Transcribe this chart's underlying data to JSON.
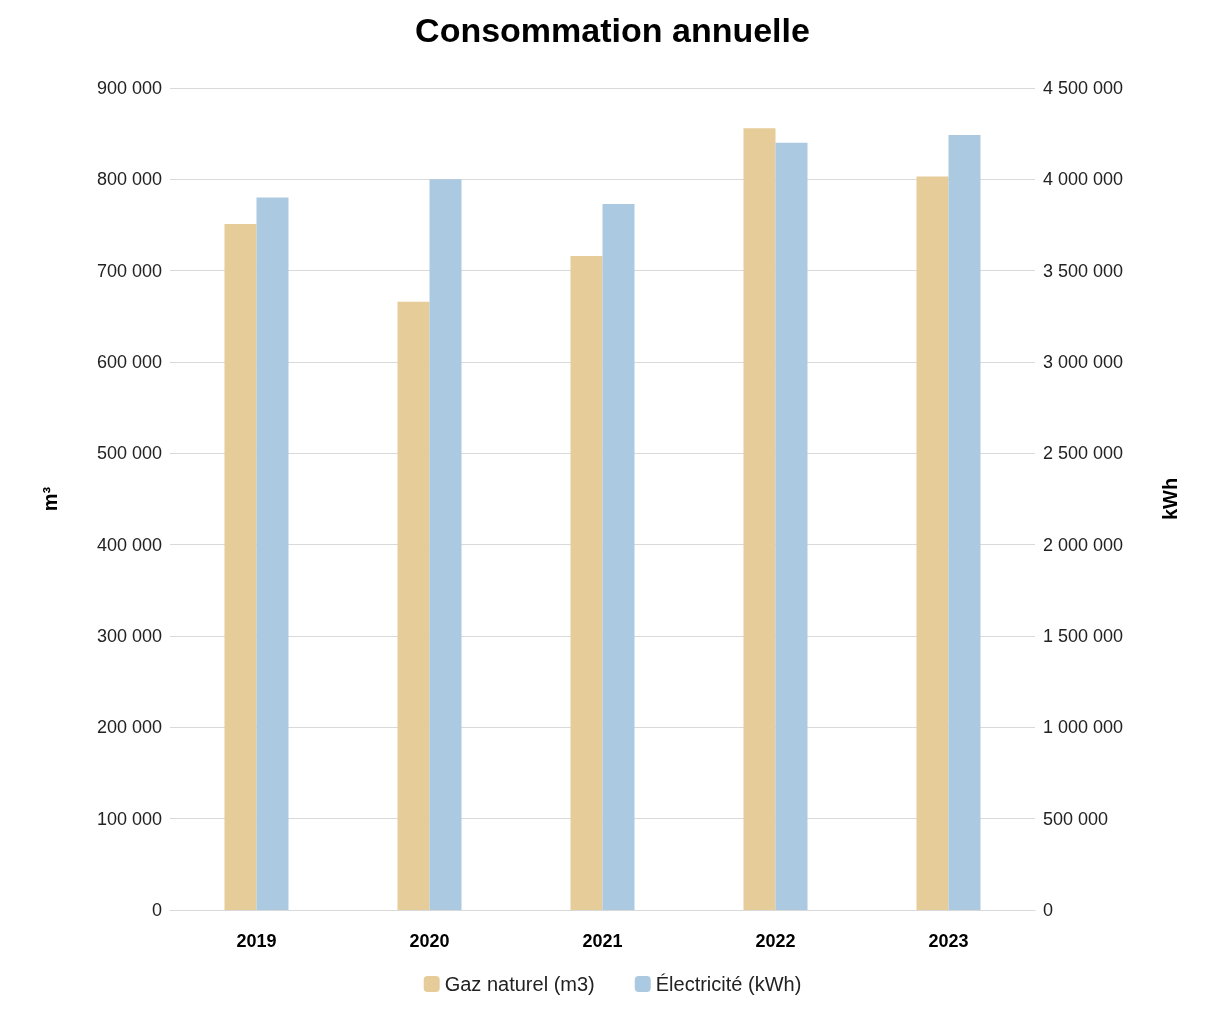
{
  "chart_data": {
    "type": "bar",
    "title": "Consommation annuelle",
    "ylabel": "m³",
    "y2label": "kWh",
    "categories": [
      "2019",
      "2020",
      "2021",
      "2022",
      "2023"
    ],
    "series": [
      {
        "name": "Gaz naturel (m3)",
        "color": "#e6cc98",
        "values": [
          751000,
          666000,
          716000,
          856000,
          803000
        ]
      },
      {
        "name": "Électricité (kWh)",
        "color": "#abc9e0",
        "axis": "y2",
        "values": [
          3900000,
          4000000,
          3865000,
          4200000,
          4243000
        ]
      }
    ],
    "ylim": [
      0,
      900000
    ],
    "yticks": [
      {
        "value": 0,
        "label": "0"
      },
      {
        "value": 100000,
        "label": "100 000"
      },
      {
        "value": 200000,
        "label": "200 000"
      },
      {
        "value": 300000,
        "label": "300 000"
      },
      {
        "value": 400000,
        "label": "400 000"
      },
      {
        "value": 500000,
        "label": "500 000"
      },
      {
        "value": 600000,
        "label": "600 000"
      },
      {
        "value": 700000,
        "label": "700 000"
      },
      {
        "value": 800000,
        "label": "800 000"
      },
      {
        "value": 900000,
        "label": "900 000"
      }
    ],
    "y2lim": [
      0,
      4500000
    ],
    "y2ticks": [
      {
        "value": 0,
        "label": "0"
      },
      {
        "value": 500000,
        "label": "500 000"
      },
      {
        "value": 1000000,
        "label": "1 000 000"
      },
      {
        "value": 1500000,
        "label": "1 500 000"
      },
      {
        "value": 2000000,
        "label": "2 000 000"
      },
      {
        "value": 2500000,
        "label": "2 500 000"
      },
      {
        "value": 3000000,
        "label": "3 000 000"
      },
      {
        "value": 3500000,
        "label": "3 500 000"
      },
      {
        "value": 4000000,
        "label": "4 000 000"
      },
      {
        "value": 4500000,
        "label": "4 500 000"
      }
    ],
    "grid": "y",
    "legend": "bottom"
  }
}
